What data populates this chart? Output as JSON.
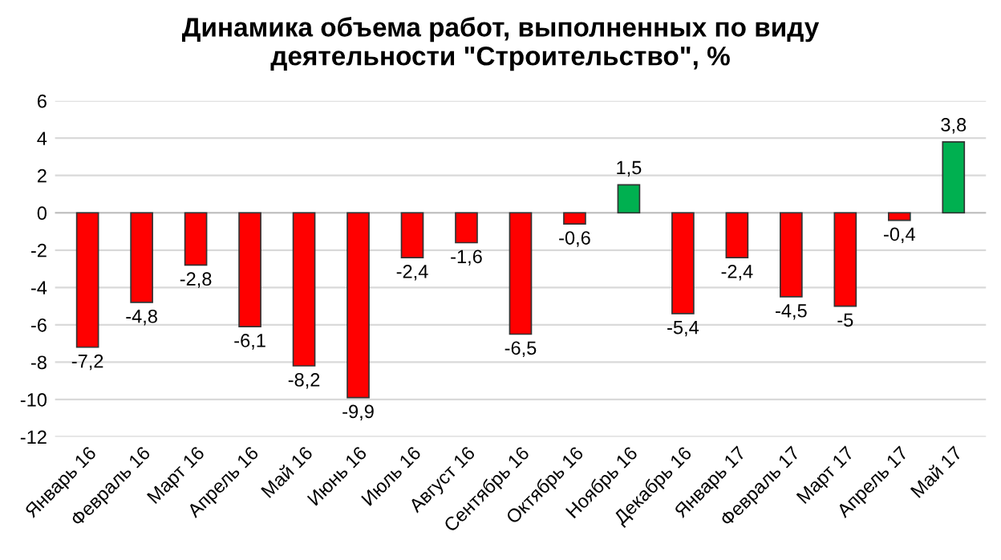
{
  "chart_data": {
    "type": "bar",
    "title": "Динамика объема работ, выполненных по виду\nдеятельности \"Строительство\", %",
    "categories": [
      "Январь 16",
      "Февраль 16",
      "Март 16",
      "Апрель 16",
      "Май 16",
      "Июнь 16",
      "Июль 16",
      "Август 16",
      "Сентябрь 16",
      "Октябрь 16",
      "Ноябрь 16",
      "Декабрь 16",
      "Январь 17",
      "Февраль 17",
      "Март 17",
      "Апрель 17",
      "Май 17"
    ],
    "values": [
      -7.2,
      -4.8,
      -2.8,
      -6.1,
      -8.2,
      -9.9,
      -2.4,
      -1.6,
      -6.5,
      -0.6,
      1.5,
      -5.4,
      -2.4,
      -4.5,
      -5,
      -0.4,
      3.8
    ],
    "colors": [
      "#ff0000",
      "#ff0000",
      "#ff0000",
      "#ff0000",
      "#ff0000",
      "#ff0000",
      "#ff0000",
      "#ff0000",
      "#ff0000",
      "#ff0000",
      "#00b050",
      "#ff0000",
      "#ff0000",
      "#ff0000",
      "#ff0000",
      "#ff0000",
      "#00b050"
    ],
    "value_labels": [
      "-7,2",
      "-4,8",
      "-2,8",
      "-6,1",
      "-8,2",
      "-9,9",
      "-2,4",
      "-1,6",
      "-6,5",
      "-0,6",
      "1,5",
      "-5,4",
      "-2,4",
      "-4,5",
      "-5",
      "-0,4",
      "3,8"
    ],
    "ylim": [
      -12,
      6
    ],
    "yticks": [
      -12,
      -10,
      -8,
      -6,
      -4,
      -2,
      0,
      2,
      4,
      6
    ],
    "grid": "y",
    "legend": false
  }
}
